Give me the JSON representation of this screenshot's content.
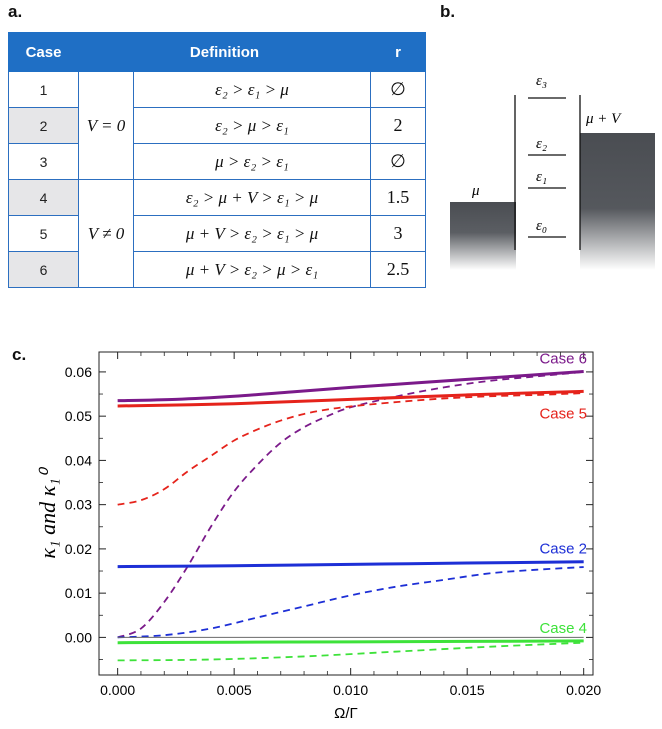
{
  "panels": {
    "a": "a.",
    "b": "b.",
    "c": "c."
  },
  "table": {
    "headers": [
      "Case",
      "Definition",
      "r"
    ],
    "rows": [
      {
        "case": "1",
        "cond": "ε₂ > ε₁ > μ",
        "r": "∅"
      },
      {
        "case": "2",
        "cond": "ε₂ > μ > ε₁",
        "r": "2"
      },
      {
        "case": "3",
        "cond": "μ > ε₂ > ε₁",
        "r": "∅"
      },
      {
        "case": "4",
        "cond": "ε₂ > μ + V > ε₁ > μ",
        "r": "1.5"
      },
      {
        "case": "5",
        "cond": "μ + V > ε₂ > ε₁ > μ",
        "r": "3"
      },
      {
        "case": "6",
        "cond": "μ + V > ε₂ > μ > ε₁",
        "r": "2.5"
      }
    ],
    "group_v0": "V = 0",
    "group_vn0": "V ≠ 0"
  },
  "diagram": {
    "mu_label": "μ",
    "muV_label": "μ + V",
    "levels": [
      "ε₃",
      "ε₂",
      "ε₁",
      "ε₀"
    ]
  },
  "chart_data": {
    "type": "line",
    "xlabel": "Ω/Γ",
    "ylabel": "κ₁ and κ₁⁰",
    "xlim": [
      -0.0008,
      0.0204
    ],
    "ylim": [
      -0.0085,
      0.0645
    ],
    "xticks": [
      0.0,
      0.005,
      0.01,
      0.015,
      0.02
    ],
    "xtick_labels": [
      "0.000",
      "0.005",
      "0.010",
      "0.015",
      "0.020"
    ],
    "yticks": [
      0.0,
      0.01,
      0.02,
      0.03,
      0.04,
      0.05,
      0.06
    ],
    "ytick_labels": [
      "0.00",
      "0.01",
      "0.02",
      "0.03",
      "0.04",
      "0.05",
      "0.06"
    ],
    "grid": false,
    "series": [
      {
        "name": "Case 6",
        "color": "#7b1a8a",
        "style": "solid",
        "x": [
          0,
          0.0025,
          0.005,
          0.0075,
          0.01,
          0.0125,
          0.015,
          0.0175,
          0.02
        ],
        "y": [
          0.0535,
          0.0538,
          0.0545,
          0.0555,
          0.0565,
          0.0574,
          0.0583,
          0.0592,
          0.0601
        ]
      },
      {
        "name": "",
        "color": "#7b1a8a",
        "style": "dashed",
        "x": [
          0,
          0.001,
          0.002,
          0.003,
          0.004,
          0.005,
          0.006,
          0.007,
          0.008,
          0.009,
          0.01,
          0.012,
          0.014,
          0.016,
          0.018,
          0.02
        ],
        "y": [
          0.0,
          0.002,
          0.008,
          0.016,
          0.025,
          0.033,
          0.039,
          0.044,
          0.0475,
          0.05,
          0.052,
          0.0545,
          0.0565,
          0.058,
          0.059,
          0.06
        ]
      },
      {
        "name": "Case 5",
        "color": "#e5231b",
        "style": "solid",
        "x": [
          0,
          0.005,
          0.01,
          0.015,
          0.02
        ],
        "y": [
          0.0523,
          0.0528,
          0.0538,
          0.0548,
          0.0556
        ]
      },
      {
        "name": "",
        "color": "#e5231b",
        "style": "dashed",
        "x": [
          0,
          0.001,
          0.002,
          0.003,
          0.004,
          0.005,
          0.006,
          0.007,
          0.008,
          0.009,
          0.01,
          0.012,
          0.014,
          0.016,
          0.018,
          0.02
        ],
        "y": [
          0.03,
          0.031,
          0.0335,
          0.0375,
          0.041,
          0.0445,
          0.047,
          0.049,
          0.0505,
          0.0515,
          0.0522,
          0.0532,
          0.054,
          0.0545,
          0.0548,
          0.0552
        ]
      },
      {
        "name": "Case 2",
        "color": "#1d2fd6",
        "style": "solid",
        "x": [
          0,
          0.005,
          0.01,
          0.015,
          0.02
        ],
        "y": [
          0.016,
          0.0162,
          0.0165,
          0.0168,
          0.0171
        ]
      },
      {
        "name": "",
        "color": "#1d2fd6",
        "style": "dashed",
        "x": [
          0,
          0.002,
          0.004,
          0.006,
          0.008,
          0.01,
          0.012,
          0.014,
          0.016,
          0.018,
          0.02
        ],
        "y": [
          0.0,
          0.0005,
          0.002,
          0.0045,
          0.007,
          0.0095,
          0.0115,
          0.013,
          0.0145,
          0.0153,
          0.0159
        ]
      },
      {
        "name": "Case 4",
        "color": "#3ee23a",
        "style": "solid",
        "x": [
          0,
          0.005,
          0.01,
          0.015,
          0.02
        ],
        "y": [
          -0.0012,
          -0.0011,
          -0.001,
          -0.0009,
          -0.0008
        ]
      },
      {
        "name": "",
        "color": "#3ee23a",
        "style": "dashed",
        "x": [
          0,
          0.004,
          0.008,
          0.012,
          0.016,
          0.02
        ],
        "y": [
          -0.0052,
          -0.005,
          -0.0043,
          -0.0032,
          -0.0021,
          -0.0012
        ]
      },
      {
        "name": "",
        "color": "#6a6a6a",
        "style": "solid",
        "x": [
          0,
          0.02
        ],
        "y": [
          0.0,
          0.0
        ]
      }
    ],
    "annotations": [
      "Case 6",
      "Case 5",
      "Case 2",
      "Case 4"
    ]
  }
}
